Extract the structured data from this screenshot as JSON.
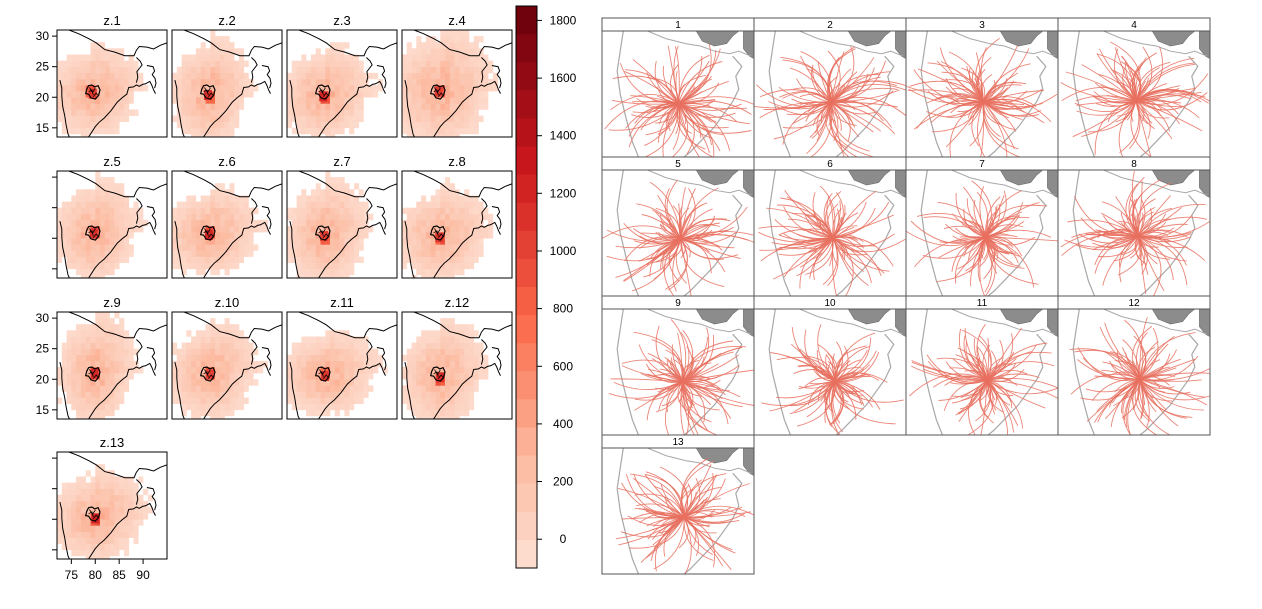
{
  "chart_data": [
    {
      "type": "heatmap",
      "panels": [
        "z.1",
        "z.2",
        "z.3",
        "z.4",
        "z.5",
        "z.6",
        "z.7",
        "z.8",
        "z.9",
        "z.10",
        "z.11",
        "z.12",
        "z.13"
      ],
      "x_ticks": [
        "75",
        "80",
        "85",
        "90"
      ],
      "y_ticks": [
        "30",
        "25",
        "20",
        "15"
      ],
      "xlim": [
        72,
        95
      ],
      "ylim": [
        13.5,
        31
      ],
      "colorbar": {
        "ticks": [
          "1800",
          "1600",
          "1400",
          "1200",
          "1000",
          "800",
          "600",
          "400",
          "200",
          "0"
        ],
        "range": [
          -100,
          1850
        ],
        "low_color": "#fde3d8",
        "high_color": "#67000d"
      }
    },
    {
      "type": "line",
      "panels": [
        "1",
        "2",
        "3",
        "4",
        "5",
        "6",
        "7",
        "8",
        "9",
        "10",
        "11",
        "12",
        "13"
      ],
      "trajectory_color": "#e8705f"
    }
  ]
}
